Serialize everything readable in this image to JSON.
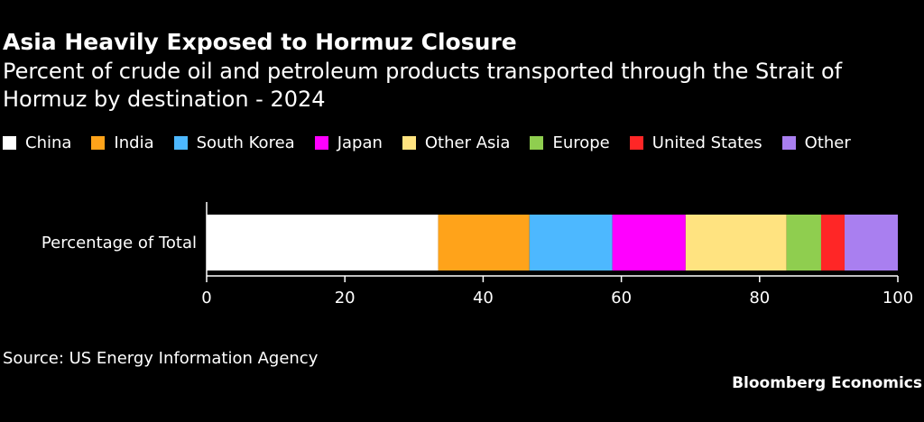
{
  "header": {
    "title": "Asia Heavily Exposed to Hormuz Closure",
    "subtitle": "Percent of crude oil and petroleum products transported through the Strait of Hormuz by destination - 2024"
  },
  "chart_data": {
    "type": "bar",
    "orientation": "horizontal",
    "stacked": true,
    "title": "Asia Heavily Exposed to Hormuz Closure",
    "subtitle": "Percent of crude oil and petroleum products transported through the Strait of Hormuz by destination - 2024",
    "categories": [
      "Percentage of Total"
    ],
    "series": [
      {
        "name": "China",
        "values": [
          33.5
        ],
        "color": "#ffffff"
      },
      {
        "name": "India",
        "values": [
          13.2
        ],
        "color": "#ffa31a"
      },
      {
        "name": "South Korea",
        "values": [
          12.0
        ],
        "color": "#4db8ff"
      },
      {
        "name": "Japan",
        "values": [
          10.6
        ],
        "color": "#ff00ff"
      },
      {
        "name": "Other Asia",
        "values": [
          14.6
        ],
        "color": "#ffe380"
      },
      {
        "name": "Europe",
        "values": [
          5.0
        ],
        "color": "#8fce4f"
      },
      {
        "name": "United States",
        "values": [
          3.4
        ],
        "color": "#ff2626"
      },
      {
        "name": "Other",
        "values": [
          7.7
        ],
        "color": "#a97ff0"
      }
    ],
    "xlim": [
      0,
      100
    ],
    "xticks": [
      "0",
      "20",
      "40",
      "60",
      "80",
      "100"
    ],
    "xlabel": "",
    "ylabel": "",
    "grid": false,
    "legend": "top-left",
    "source": "Source: US Energy Information Agency",
    "brand": "Bloomberg Economics"
  }
}
